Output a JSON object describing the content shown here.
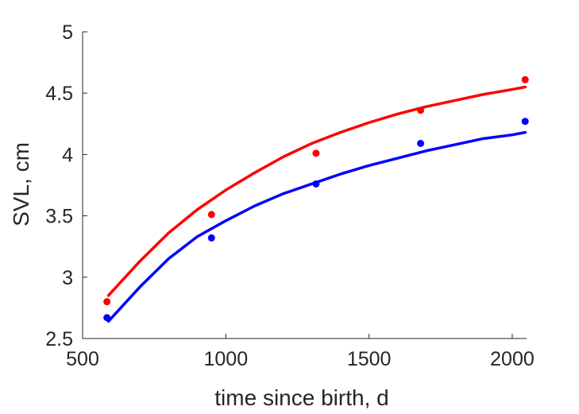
{
  "chart_data": {
    "type": "scatter",
    "xlabel": "time since birth, d",
    "ylabel": "SVL, cm",
    "xlim": [
      500,
      2050
    ],
    "ylim": [
      2.5,
      5
    ],
    "xticks": [
      500,
      1000,
      1500,
      2000
    ],
    "yticks": [
      2.5,
      3,
      3.5,
      4,
      4.5,
      5
    ],
    "xtick_labels": [
      "500",
      "1000",
      "1500",
      "2000"
    ],
    "ytick_labels": [
      "2.5",
      "3",
      "3.5",
      "4",
      "4.5",
      "5"
    ],
    "grid": false,
    "legend": "none",
    "series": [
      {
        "color": "#ff0000",
        "points": {
          "x": [
            585,
            950,
            1315,
            1680,
            2045
          ],
          "y": [
            2.8,
            3.51,
            4.01,
            4.36,
            4.61
          ]
        },
        "fit": {
          "x": [
            590,
            700,
            800,
            900,
            1000,
            1100,
            1200,
            1300,
            1400,
            1500,
            1600,
            1700,
            1800,
            1900,
            2000,
            2045
          ],
          "y": [
            2.85,
            3.13,
            3.36,
            3.55,
            3.71,
            3.85,
            3.98,
            4.09,
            4.18,
            4.26,
            4.33,
            4.39,
            4.44,
            4.49,
            4.53,
            4.55
          ]
        }
      },
      {
        "color": "#0000ff",
        "points": {
          "x": [
            585,
            950,
            1315,
            1680,
            2045
          ],
          "y": [
            2.67,
            3.32,
            3.76,
            4.09,
            4.27
          ]
        },
        "fit": {
          "x": [
            590,
            700,
            800,
            900,
            1000,
            1100,
            1200,
            1300,
            1400,
            1500,
            1600,
            1700,
            1800,
            1900,
            2000,
            2045
          ],
          "y": [
            2.64,
            2.92,
            3.15,
            3.33,
            3.46,
            3.58,
            3.68,
            3.76,
            3.84,
            3.91,
            3.97,
            4.03,
            4.08,
            4.13,
            4.16,
            4.18
          ]
        }
      }
    ]
  }
}
